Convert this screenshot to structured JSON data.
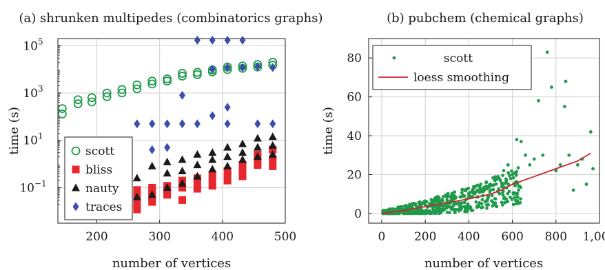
{
  "charts": [
    {
      "title": "(a) shrunken multipedes (combinatorics graphs)",
      "xlabel": "number of vertices",
      "ylabel": "time (s)",
      "xticks": [
        "200",
        "300",
        "400",
        "500"
      ],
      "yticks": [
        {
          "base": "10",
          "exp": "5"
        },
        {
          "base": "10",
          "exp": "3"
        },
        {
          "base": "10",
          "exp": "1"
        },
        {
          "base": "10",
          "exp": "−1"
        }
      ],
      "legend": [
        "scott",
        "bliss",
        "nauty",
        "traces"
      ]
    },
    {
      "title": "(b) pubchem (chemical graphs)",
      "xlabel": "number of vertices",
      "ylabel": "time (s)",
      "xticks": [
        "0",
        "200",
        "400",
        "600",
        "800",
        "1,000"
      ],
      "yticks": [
        "0",
        "20",
        "40",
        "60",
        "80"
      ],
      "legend": [
        "scott",
        "loess smoothing"
      ]
    }
  ],
  "colors": {
    "scott": "#1f9a4b",
    "bliss": "#e8272d",
    "nauty": "#1a1a1a",
    "traces": "#3b4eaa",
    "loess": "#c8262b",
    "grid": "#cfcfcf"
  },
  "chart_data": [
    {
      "type": "scatter",
      "title": "(a) shrunken multipedes (combinatorics graphs)",
      "xlabel": "number of vertices",
      "ylabel": "time (s)",
      "xlim": [
        138,
        500
      ],
      "ylim_log10": [
        -2.5,
        5.3
      ],
      "yscale": "log",
      "grid": true,
      "legend_position": "bottom-left",
      "series": [
        {
          "name": "scott",
          "marker": "circle-open",
          "points": [
            [
              145,
              130
            ],
            [
              145,
              220
            ],
            [
              170,
              350
            ],
            [
              170,
              520
            ],
            [
              192,
              420
            ],
            [
              192,
              640
            ],
            [
              216,
              700
            ],
            [
              216,
              1000
            ],
            [
              240,
              1000
            ],
            [
              240,
              1400
            ],
            [
              264,
              1500
            ],
            [
              264,
              2200
            ],
            [
              288,
              2400
            ],
            [
              288,
              3200
            ],
            [
              312,
              3200
            ],
            [
              312,
              4000
            ],
            [
              336,
              5200
            ],
            [
              336,
              6800
            ],
            [
              360,
              6000
            ],
            [
              360,
              7500
            ],
            [
              384,
              7800
            ],
            [
              384,
              9500
            ],
            [
              408,
              9800
            ],
            [
              408,
              12500
            ],
            [
              432,
              11000
            ],
            [
              432,
              14000
            ],
            [
              456,
              12500
            ],
            [
              456,
              16000
            ],
            [
              480,
              15000
            ],
            [
              480,
              20000
            ]
          ]
        },
        {
          "name": "bliss",
          "marker": "square",
          "points": [
            [
              240,
              0.012
            ],
            [
              240,
              0.02
            ],
            [
              264,
              0.012
            ],
            [
              264,
              0.02
            ],
            [
              264,
              0.04
            ],
            [
              264,
              0.08
            ],
            [
              288,
              0.025
            ],
            [
              288,
              0.04
            ],
            [
              288,
              0.07
            ],
            [
              288,
              0.1
            ],
            [
              312,
              0.05
            ],
            [
              312,
              0.08
            ],
            [
              312,
              0.12
            ],
            [
              336,
              0.03
            ],
            [
              336,
              0.1
            ],
            [
              336,
              0.2
            ],
            [
              360,
              0.09
            ],
            [
              360,
              0.15
            ],
            [
              360,
              0.25
            ],
            [
              384,
              0.12
            ],
            [
              384,
              0.18
            ],
            [
              384,
              0.35
            ],
            [
              408,
              0.2
            ],
            [
              408,
              0.3
            ],
            [
              408,
              0.5
            ],
            [
              432,
              0.3
            ],
            [
              432,
              0.55
            ],
            [
              432,
              0.9
            ],
            [
              456,
              0.9
            ],
            [
              456,
              1.5
            ],
            [
              456,
              2.5
            ],
            [
              480,
              0.8
            ],
            [
              480,
              1.6
            ],
            [
              480,
              4
            ]
          ]
        },
        {
          "name": "nauty",
          "marker": "triangle",
          "points": [
            [
              240,
              0.03
            ],
            [
              240,
              0.5
            ],
            [
              264,
              0.04
            ],
            [
              264,
              0.25
            ],
            [
              288,
              0.05
            ],
            [
              288,
              0.8
            ],
            [
              312,
              0.1
            ],
            [
              312,
              0.4
            ],
            [
              312,
              1.2
            ],
            [
              336,
              0.15
            ],
            [
              336,
              0.5
            ],
            [
              336,
              1.5
            ],
            [
              360,
              0.3
            ],
            [
              360,
              0.9
            ],
            [
              360,
              2.5
            ],
            [
              384,
              0.6
            ],
            [
              384,
              1.5
            ],
            [
              384,
              3
            ],
            [
              408,
              0.8
            ],
            [
              408,
              2
            ],
            [
              408,
              5
            ],
            [
              432,
              1.5
            ],
            [
              432,
              3
            ],
            [
              432,
              7
            ],
            [
              456,
              2
            ],
            [
              456,
              5
            ],
            [
              456,
              12
            ],
            [
              480,
              2.5
            ],
            [
              480,
              6
            ],
            [
              480,
              14
            ]
          ]
        },
        {
          "name": "traces",
          "marker": "diamond",
          "points": [
            [
              240,
              4
            ],
            [
              264,
              50
            ],
            [
              288,
              50
            ],
            [
              288,
              4
            ],
            [
              312,
              50
            ],
            [
              312,
              5
            ],
            [
              336,
              50
            ],
            [
              336,
              800
            ],
            [
              360,
              50
            ],
            [
              360,
              170000
            ],
            [
              384,
              110
            ],
            [
              384,
              10000
            ],
            [
              384,
              170000
            ],
            [
              408,
              50
            ],
            [
              408,
              250
            ],
            [
              408,
              12000
            ],
            [
              408,
              170000
            ],
            [
              432,
              12000
            ],
            [
              432,
              170000
            ],
            [
              456,
              50
            ],
            [
              456,
              13000
            ],
            [
              480,
              50
            ],
            [
              480,
              12000
            ]
          ]
        }
      ]
    },
    {
      "type": "scatter",
      "title": "(b) pubchem (chemical graphs)",
      "xlabel": "number of vertices",
      "ylabel": "time (s)",
      "xlim": [
        -60,
        1000
      ],
      "ylim": [
        -5,
        90
      ],
      "grid": true,
      "legend_position": "top-left",
      "series": [
        {
          "name": "scott",
          "marker": "dot",
          "points": [
            [
              20,
              0.5
            ],
            [
              40,
              1
            ],
            [
              60,
              1.2
            ],
            [
              80,
              1.5
            ],
            [
              100,
              2
            ],
            [
              120,
              2.5
            ],
            [
              140,
              3
            ],
            [
              160,
              3.5
            ],
            [
              180,
              4
            ],
            [
              200,
              4.5
            ],
            [
              220,
              5
            ],
            [
              240,
              5.5
            ],
            [
              260,
              6
            ],
            [
              280,
              6.5
            ],
            [
              300,
              7
            ],
            [
              320,
              7.5
            ],
            [
              340,
              8
            ],
            [
              360,
              8.5
            ],
            [
              380,
              9
            ],
            [
              400,
              10
            ],
            [
              420,
              11
            ],
            [
              440,
              12
            ],
            [
              460,
              12
            ],
            [
              480,
              14
            ],
            [
              500,
              15
            ],
            [
              520,
              17
            ],
            [
              540,
              18
            ],
            [
              560,
              22
            ],
            [
              580,
              25
            ],
            [
              600,
              20
            ],
            [
              620,
              38
            ],
            [
              640,
              37
            ],
            [
              660,
              30
            ],
            [
              680,
              25
            ],
            [
              700,
              28
            ],
            [
              720,
              58
            ],
            [
              740,
              30
            ],
            [
              760,
              83
            ],
            [
              780,
              65
            ],
            [
              800,
              22
            ],
            [
              820,
              25
            ],
            [
              840,
              55
            ],
            [
              845,
              68
            ],
            [
              860,
              30
            ],
            [
              880,
              12
            ],
            [
              900,
              25
            ],
            [
              920,
              28
            ],
            [
              940,
              15
            ],
            [
              960,
              42
            ],
            [
              970,
              23
            ]
          ]
        },
        {
          "name": "loess smoothing",
          "marker": "line",
          "points": [
            [
              0,
              0
            ],
            [
              100,
              1.5
            ],
            [
              200,
              3.5
            ],
            [
              300,
              5.5
            ],
            [
              400,
              7.5
            ],
            [
              500,
              10
            ],
            [
              550,
              12
            ],
            [
              600,
              15
            ],
            [
              700,
              19
            ],
            [
              800,
              23
            ],
            [
              900,
              27
            ],
            [
              960,
              31
            ]
          ]
        }
      ]
    }
  ]
}
